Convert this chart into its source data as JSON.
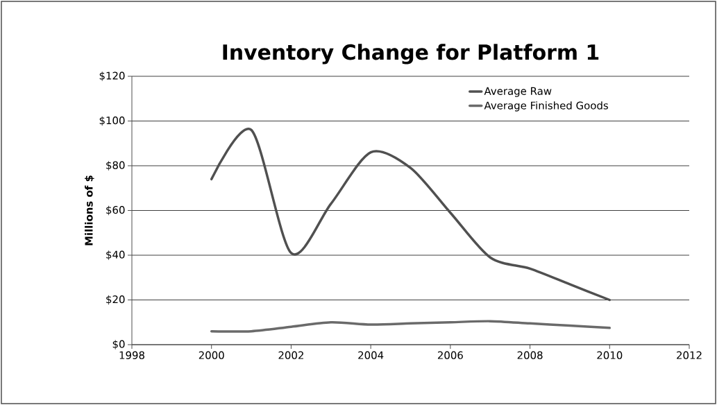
{
  "chart_data": {
    "type": "line",
    "title": "Inventory Change for Platform 1",
    "ylabel": "Millions of $",
    "x": [
      2000,
      2001,
      2002,
      2003,
      2004,
      2005,
      2006,
      2007,
      2008,
      2009,
      2010
    ],
    "series": [
      {
        "name": "Average Raw",
        "color": "#505050",
        "values": [
          74,
          96,
          41,
          63,
          86,
          79,
          59,
          39,
          34,
          27,
          20
        ]
      },
      {
        "name": "Average Finished Goods",
        "color": "#6a6a6a",
        "values": [
          6,
          6,
          8,
          10,
          9,
          9.5,
          10,
          10.5,
          9.5,
          8.5,
          7.5
        ]
      }
    ],
    "xlim": [
      1998,
      2012
    ],
    "ylim": [
      0,
      120
    ],
    "xticks": [
      1998,
      2000,
      2002,
      2004,
      2006,
      2008,
      2010,
      2012
    ],
    "yticks": [
      {
        "value": 0,
        "label": "$0"
      },
      {
        "value": 20,
        "label": "$20"
      },
      {
        "value": 40,
        "label": "$40"
      },
      {
        "value": 60,
        "label": "$60"
      },
      {
        "value": 80,
        "label": "$80"
      },
      {
        "value": 100,
        "label": "$100"
      },
      {
        "value": 120,
        "label": "$120"
      }
    ],
    "grid": "y",
    "legend": "top right",
    "line_style": "solid"
  }
}
